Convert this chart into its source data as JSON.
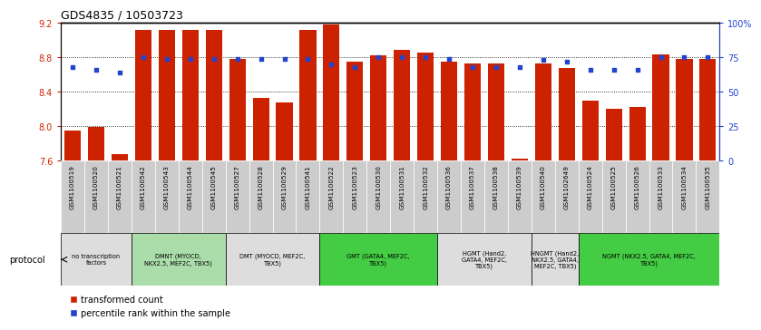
{
  "title": "GDS4835 / 10503723",
  "samples": [
    "GSM1100519",
    "GSM1100520",
    "GSM1100521",
    "GSM1100542",
    "GSM1100543",
    "GSM1100544",
    "GSM1100545",
    "GSM1100527",
    "GSM1100528",
    "GSM1100529",
    "GSM1100541",
    "GSM1100522",
    "GSM1100523",
    "GSM1100530",
    "GSM1100531",
    "GSM1100532",
    "GSM1100536",
    "GSM1100537",
    "GSM1100538",
    "GSM1100539",
    "GSM1100540",
    "GSM1102649",
    "GSM1100524",
    "GSM1100525",
    "GSM1100526",
    "GSM1100533",
    "GSM1100534",
    "GSM1100535"
  ],
  "bar_values": [
    7.95,
    7.99,
    7.68,
    9.12,
    9.12,
    9.12,
    9.12,
    8.78,
    8.33,
    8.28,
    9.12,
    9.18,
    8.75,
    8.82,
    8.88,
    8.85,
    8.75,
    8.73,
    8.73,
    7.62,
    8.73,
    8.67,
    8.3,
    8.2,
    8.22,
    8.83,
    8.78,
    8.78
  ],
  "percentile_values": [
    68,
    66,
    64,
    75,
    74,
    74,
    74,
    74,
    74,
    74,
    74,
    70,
    68,
    75,
    75,
    75,
    74,
    68,
    68,
    68,
    73,
    72,
    66,
    66,
    66,
    75,
    75,
    75
  ],
  "groups": [
    {
      "label": "no transcription\nfactors",
      "start": 0,
      "end": 3,
      "color": "#dddddd"
    },
    {
      "label": "DMNT (MYOCD,\nNKX2.5, MEF2C, TBX5)",
      "start": 3,
      "end": 7,
      "color": "#aaddaa"
    },
    {
      "label": "DMT (MYOCD, MEF2C,\nTBX5)",
      "start": 7,
      "end": 11,
      "color": "#dddddd"
    },
    {
      "label": "GMT (GATA4, MEF2C,\nTBX5)",
      "start": 11,
      "end": 16,
      "color": "#44cc44"
    },
    {
      "label": "HGMT (Hand2,\nGATA4, MEF2C,\nTBX5)",
      "start": 16,
      "end": 20,
      "color": "#dddddd"
    },
    {
      "label": "HNGMT (Hand2,\nNKX2.5, GATA4,\nMEF2C, TBX5)",
      "start": 20,
      "end": 22,
      "color": "#dddddd"
    },
    {
      "label": "NGMT (NKX2.5, GATA4, MEF2C,\nTBX5)",
      "start": 22,
      "end": 28,
      "color": "#44cc44"
    }
  ],
  "ylim_left": [
    7.6,
    9.2
  ],
  "ylim_right": [
    0,
    100
  ],
  "yticks_left": [
    7.6,
    8.0,
    8.4,
    8.8,
    9.2
  ],
  "yticks_right": [
    0,
    25,
    50,
    75,
    100
  ],
  "ytick_labels_right": [
    "0",
    "25",
    "50",
    "75",
    "100%"
  ],
  "bar_color": "#cc2200",
  "dot_color": "#2244cc",
  "bar_bottom": 7.6,
  "sample_label_color": "#cccccc",
  "grid_color": "#000000"
}
